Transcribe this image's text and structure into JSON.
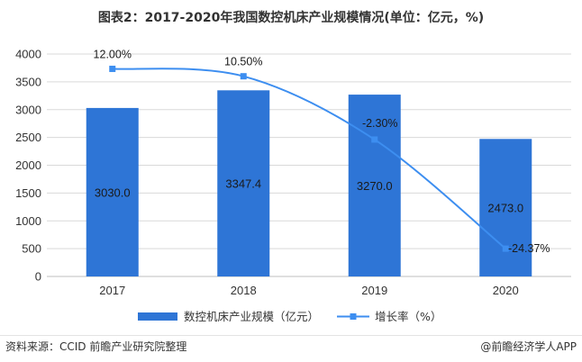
{
  "chart_data": {
    "type": "bar",
    "title": "图表2：2017-2020年我国数控机床产业规模情况(单位：亿元，%)",
    "categories": [
      "2017",
      "2018",
      "2019",
      "2020"
    ],
    "series": [
      {
        "name": "数控机床产业规模（亿元）",
        "type": "bar",
        "axis": "left",
        "values": [
          3030.0,
          3347.4,
          3270.0,
          2473.0
        ],
        "labels": [
          "3030.0",
          "3347.4",
          "3270.0",
          "2473.0"
        ],
        "color": "#2e75d6"
      },
      {
        "name": "增长率（%）",
        "type": "line",
        "axis": "right",
        "values": [
          12.0,
          10.5,
          -2.3,
          -24.37
        ],
        "labels": [
          "12.00%",
          "10.50%",
          "-2.30%",
          "-24.37%"
        ],
        "color": "#3d8ef0"
      }
    ],
    "yticks": [
      "0",
      "500",
      "1000",
      "1500",
      "2000",
      "2500",
      "3000",
      "3500",
      "4000"
    ],
    "ylim": [
      0,
      4000
    ],
    "y2lim": [
      -30,
      15
    ],
    "grid": true,
    "legend": "bottom"
  },
  "footer": {
    "source": "资料来源：CCID 前瞻产业研究院整理",
    "brand": "@前瞻经济学人APP"
  },
  "watermark": "前瞻产业研究院"
}
